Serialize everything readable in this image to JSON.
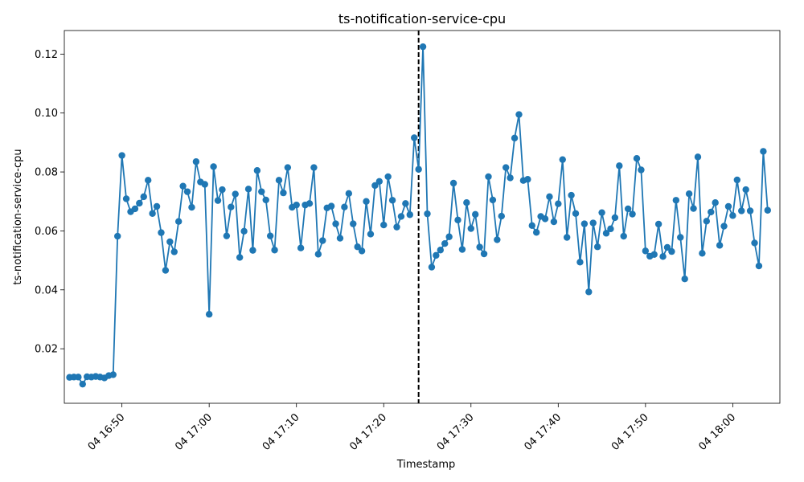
{
  "chart_data": {
    "type": "line",
    "title": "ts-notification-service-cpu",
    "xlabel": "Timestamp",
    "ylabel": "ts-notification-service-cpu",
    "x_start": "04 16:44",
    "x_step_minutes": 0.5,
    "xlim": [
      "04 16:43",
      "04 18:05"
    ],
    "ylim": [
      0.0015,
      0.128
    ],
    "x_ticks": [
      "04 16:50",
      "04 17:00",
      "04 17:10",
      "04 17:20",
      "04 17:30",
      "04 17:40",
      "04 17:50",
      "04 18:00"
    ],
    "y_ticks": [
      "0.02",
      "0.04",
      "0.06",
      "0.08",
      "0.10",
      "0.12"
    ],
    "marker_line": "04 17:24",
    "grid": false,
    "colors": {
      "series": "#1f77b4",
      "marker_line": "#000000"
    },
    "series": [
      {
        "values": [
          0.0103,
          0.0104,
          0.0104,
          0.008,
          0.0105,
          0.0104,
          0.0106,
          0.0104,
          0.0101,
          0.0109,
          0.0112,
          0.0582,
          0.0856,
          0.0709,
          0.0665,
          0.0675,
          0.0694,
          0.0716,
          0.0772,
          0.0659,
          0.0683,
          0.0594,
          0.0466,
          0.0563,
          0.0529,
          0.0632,
          0.0752,
          0.0733,
          0.068,
          0.0835,
          0.0766,
          0.0758,
          0.0317,
          0.0818,
          0.0703,
          0.074,
          0.0583,
          0.0681,
          0.0725,
          0.051,
          0.0599,
          0.0742,
          0.0534,
          0.0805,
          0.0733,
          0.0705,
          0.0583,
          0.0535,
          0.0772,
          0.0729,
          0.0815,
          0.068,
          0.0688,
          0.0542,
          0.0688,
          0.0693,
          0.0815,
          0.0521,
          0.0567,
          0.0678,
          0.0684,
          0.0624,
          0.0575,
          0.0681,
          0.0727,
          0.0624,
          0.0546,
          0.0532,
          0.07,
          0.0589,
          0.0754,
          0.0768,
          0.062,
          0.0784,
          0.0704,
          0.0613,
          0.0649,
          0.0693,
          0.0655,
          0.0916,
          0.0809,
          0.1225,
          0.0658,
          0.0477,
          0.0517,
          0.0535,
          0.0557,
          0.058,
          0.0762,
          0.0637,
          0.0537,
          0.0696,
          0.0608,
          0.0656,
          0.0545,
          0.0522,
          0.0784,
          0.0705,
          0.057,
          0.065,
          0.0815,
          0.078,
          0.0915,
          0.0995,
          0.0771,
          0.0775,
          0.0618,
          0.0595,
          0.0649,
          0.0641,
          0.0716,
          0.0631,
          0.0692,
          0.0842,
          0.0578,
          0.0721,
          0.0659,
          0.0494,
          0.0624,
          0.0393,
          0.0627,
          0.0546,
          0.0662,
          0.0592,
          0.0607,
          0.0645,
          0.0821,
          0.0582,
          0.0675,
          0.0657,
          0.0846,
          0.0807,
          0.0532,
          0.0514,
          0.052,
          0.0623,
          0.0513,
          0.0544,
          0.053,
          0.0704,
          0.0578,
          0.0437,
          0.0726,
          0.0676,
          0.0851,
          0.0524,
          0.0633,
          0.0664,
          0.0696,
          0.0551,
          0.0616,
          0.0683,
          0.0652,
          0.0773,
          0.0668,
          0.074,
          0.0668,
          0.0559,
          0.0481,
          0.087,
          0.067
        ]
      }
    ]
  }
}
